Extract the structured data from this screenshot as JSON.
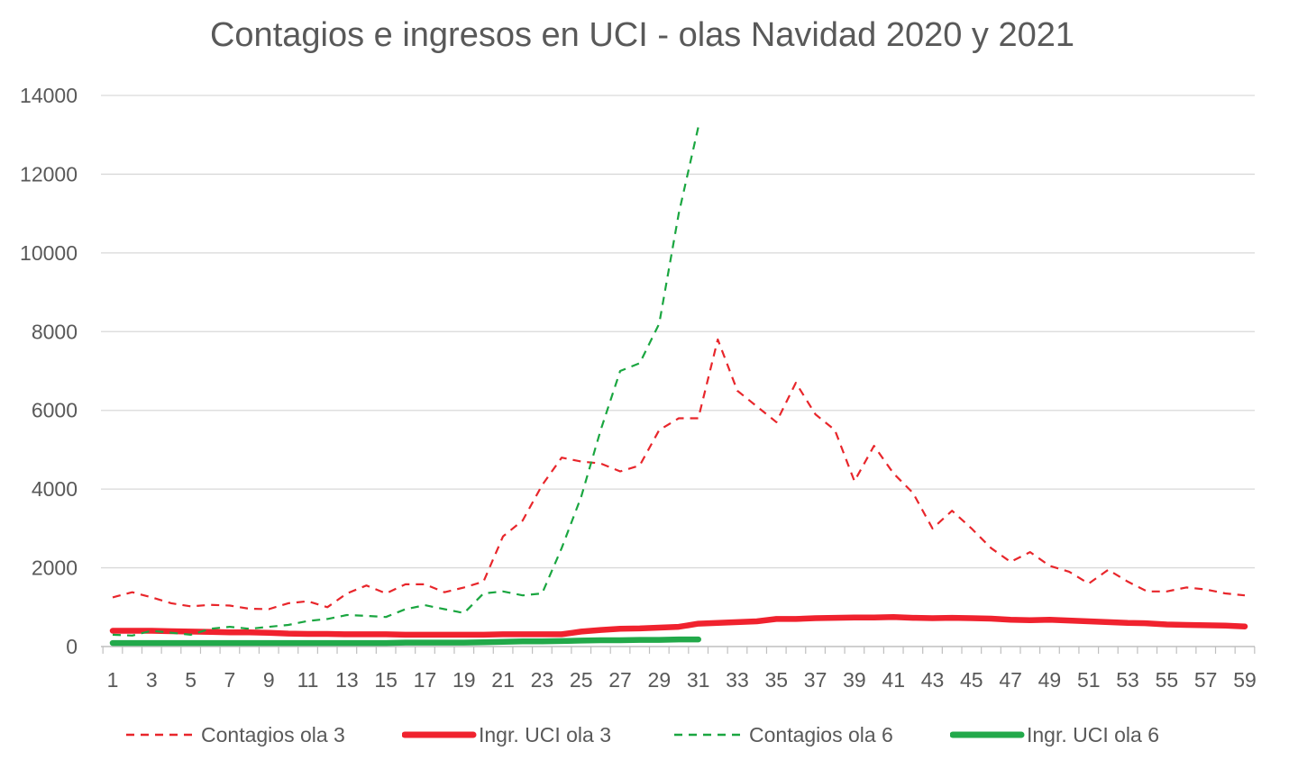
{
  "chart_data": {
    "type": "line",
    "title": "Contagios e ingresos en UCI - olas Navidad 2020 y 2021",
    "xlabel": "",
    "ylabel": "",
    "ylim": [
      0,
      14000
    ],
    "yticks": [
      "0",
      "2000",
      "4000",
      "6000",
      "8000",
      "10000",
      "12000",
      "14000"
    ],
    "xlim": [
      1,
      59
    ],
    "xticks": [
      "1",
      "3",
      "5",
      "7",
      "9",
      "11",
      "13",
      "15",
      "17",
      "19",
      "21",
      "23",
      "25",
      "27",
      "29",
      "31",
      "33",
      "35",
      "37",
      "39",
      "41",
      "43",
      "45",
      "47",
      "49",
      "51",
      "53",
      "55",
      "57",
      "59"
    ],
    "grid": "horizontal",
    "legend_position": "bottom",
    "series": [
      {
        "name": "Contagios ola 3",
        "color": "#e8262b",
        "style": "dashed",
        "values": [
          1250,
          1380,
          1250,
          1100,
          1020,
          1060,
          1040,
          960,
          950,
          1100,
          1150,
          1000,
          1350,
          1550,
          1350,
          1580,
          1580,
          1380,
          1500,
          1650,
          2800,
          3200,
          4100,
          4800,
          4700,
          4650,
          4450,
          4600,
          5500,
          5800,
          5800,
          7800,
          6500,
          6100,
          5700,
          6700,
          5900,
          5500,
          4200,
          5100,
          4400,
          3900,
          3000,
          3450,
          3000,
          2500,
          2150,
          2400,
          2050,
          1900,
          1600,
          1950,
          1650,
          1400,
          1400,
          1500,
          1450,
          1350,
          1300
        ]
      },
      {
        "name": "Ingr. UCI ola 3",
        "color": "#f0222e",
        "style": "solid-thick",
        "values": [
          400,
          400,
          400,
          390,
          380,
          370,
          360,
          360,
          350,
          330,
          320,
          320,
          310,
          310,
          310,
          300,
          300,
          300,
          300,
          300,
          310,
          310,
          310,
          310,
          380,
          420,
          450,
          460,
          480,
          500,
          580,
          600,
          620,
          640,
          700,
          700,
          720,
          730,
          740,
          740,
          750,
          730,
          720,
          730,
          720,
          710,
          680,
          670,
          680,
          660,
          640,
          620,
          600,
          590,
          560,
          550,
          540,
          530,
          510
        ]
      },
      {
        "name": "Contagios ola 6",
        "color": "#1aa640",
        "style": "dashed",
        "values": [
          300,
          280,
          400,
          350,
          300,
          450,
          500,
          450,
          500,
          550,
          650,
          700,
          800,
          780,
          750,
          950,
          1050,
          950,
          850,
          1350,
          1400,
          1300,
          1350,
          2500,
          3800,
          5500,
          7000,
          7200,
          8200,
          11000,
          13200
        ]
      },
      {
        "name": "Ingr. UCI ola 6",
        "color": "#22a94a",
        "style": "solid-thick",
        "values": [
          90,
          90,
          90,
          90,
          90,
          90,
          90,
          90,
          90,
          90,
          90,
          90,
          90,
          90,
          90,
          100,
          100,
          100,
          100,
          110,
          120,
          130,
          130,
          140,
          150,
          160,
          160,
          170,
          170,
          180,
          180
        ]
      }
    ]
  }
}
